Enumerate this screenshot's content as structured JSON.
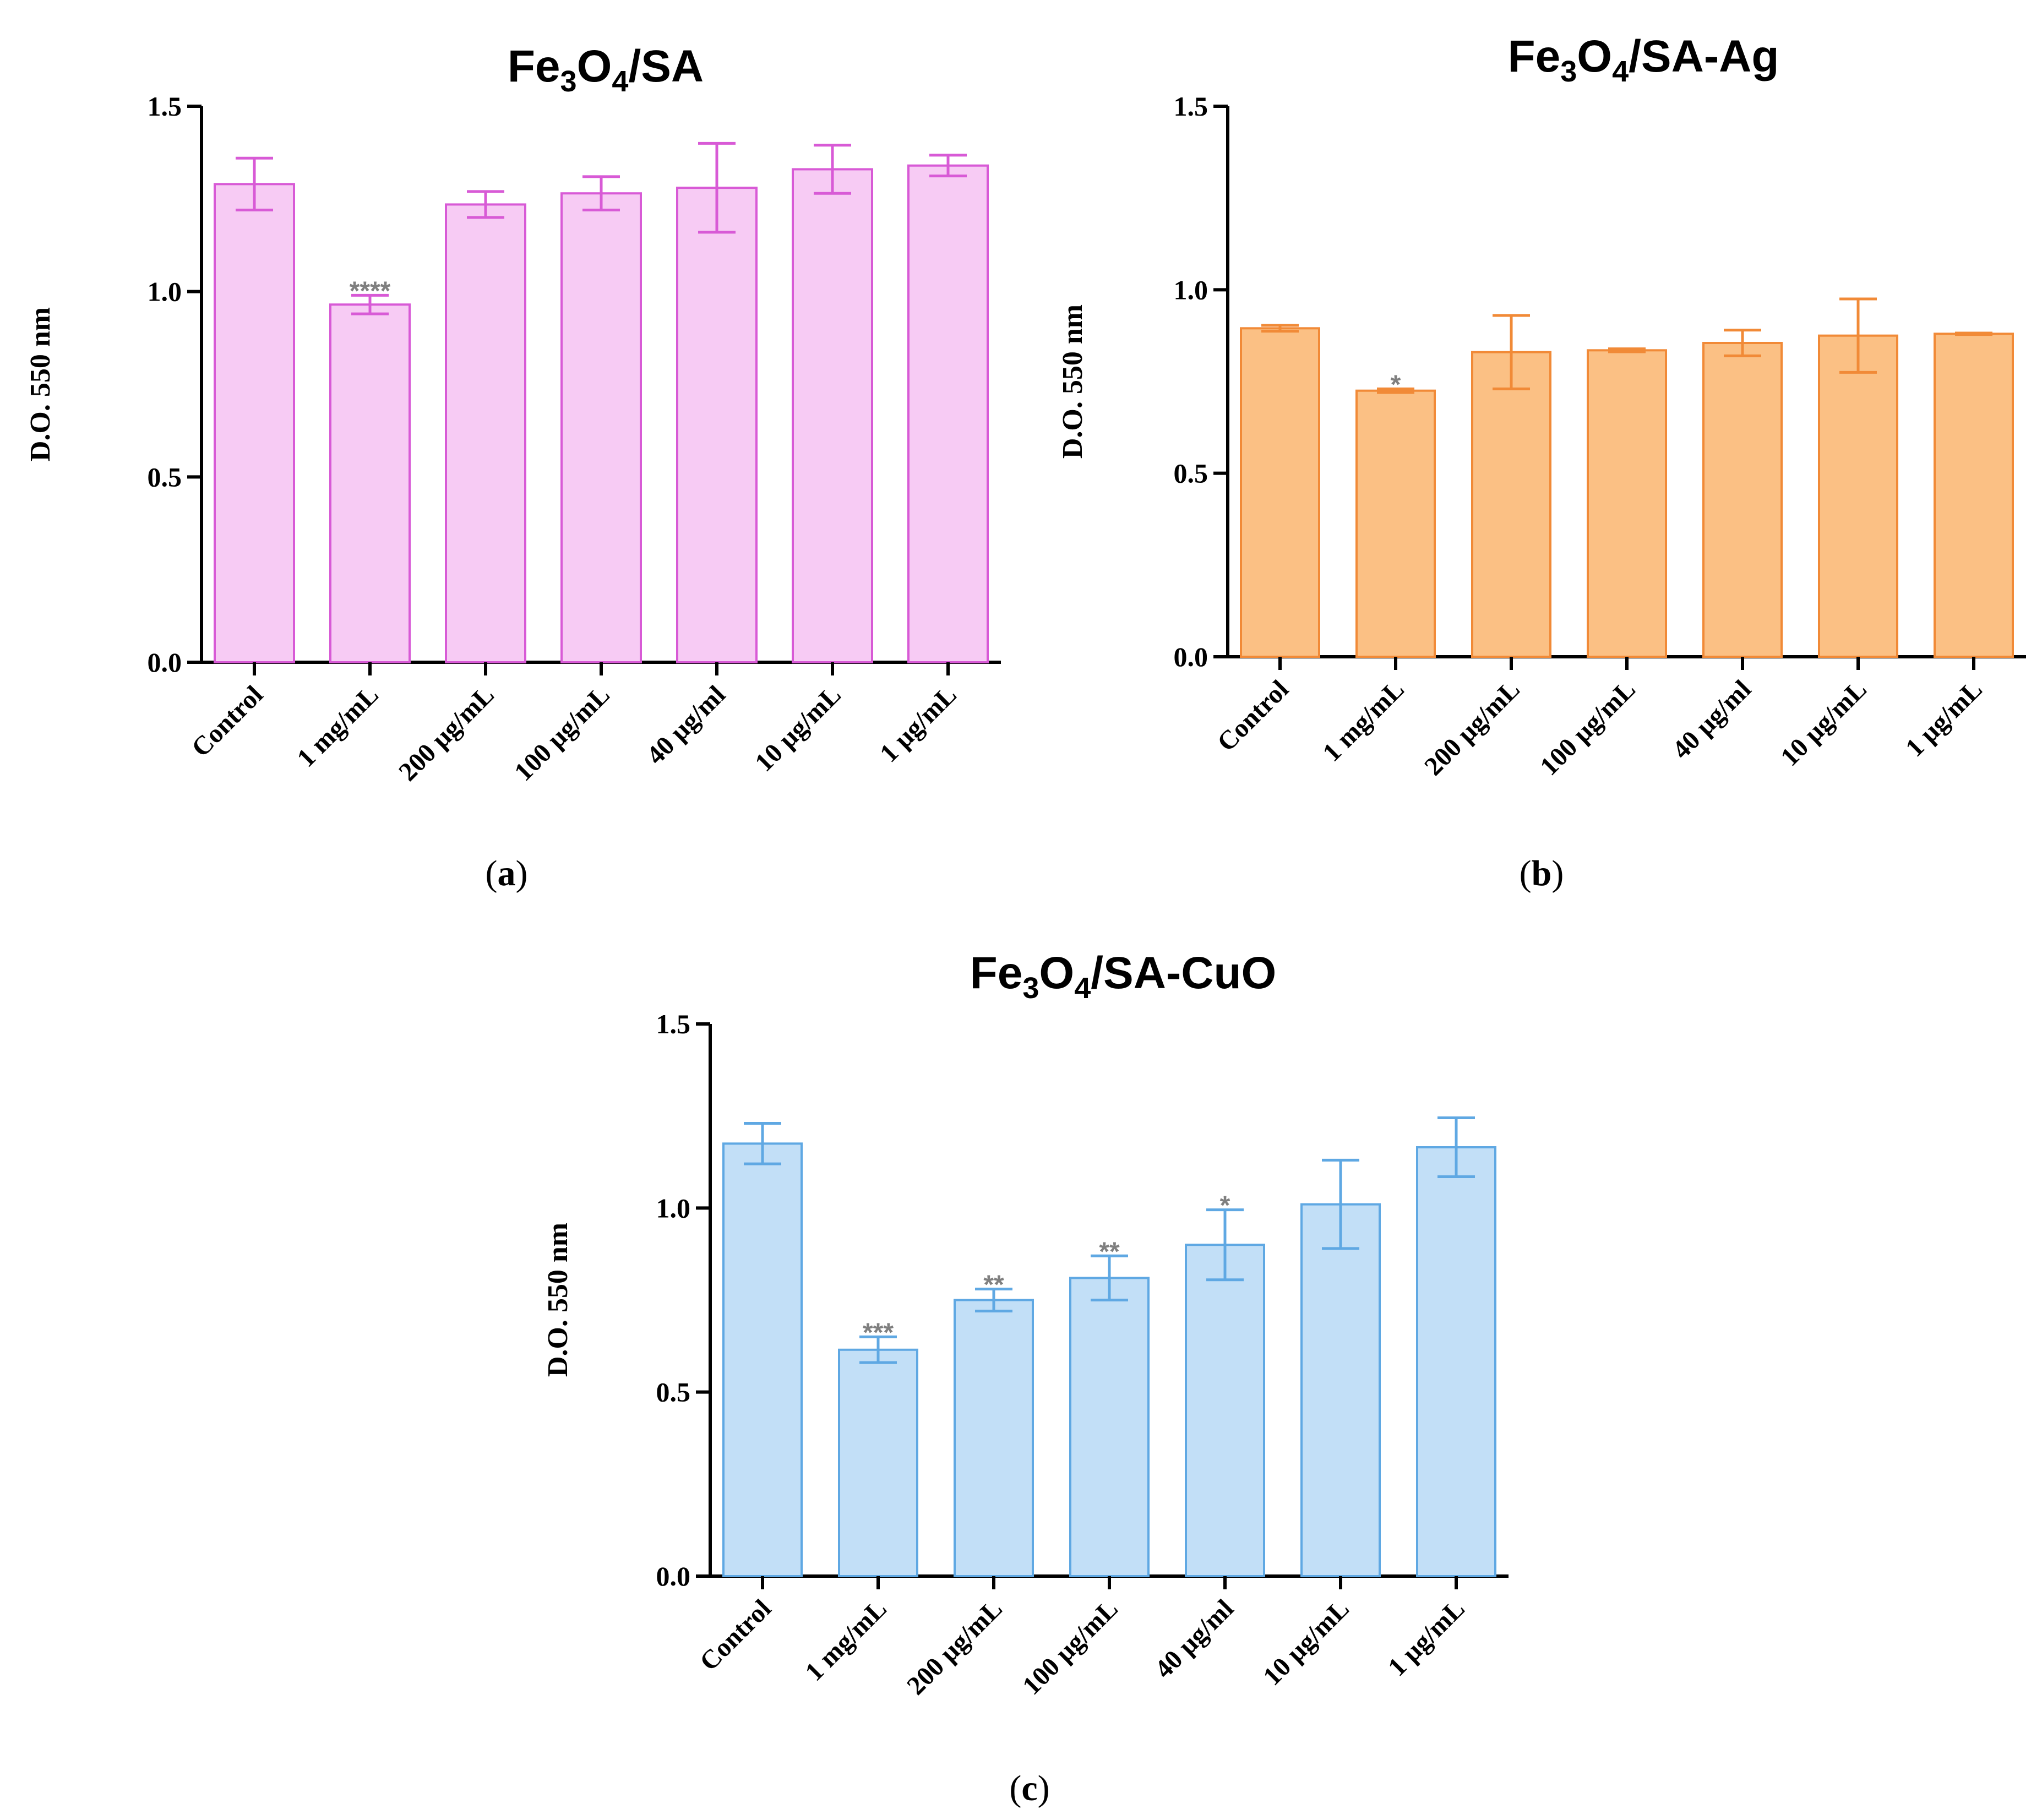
{
  "chart_data": [
    {
      "id": "a",
      "type": "bar",
      "title": {
        "main": "Fe",
        "sub1": "3",
        "mid": "O",
        "sub2": "4",
        "tail": "/SA"
      },
      "caption": {
        "open": "(",
        "letter": "a",
        "close": ")"
      },
      "xlabel": "",
      "ylabel": "D.O. 550 nm",
      "ylim": [
        0,
        1.5
      ],
      "yticks": [
        "0.0",
        "0.5",
        "1.0",
        "1.5"
      ],
      "categories": [
        "Control",
        "1 mg/mL",
        "200 µg/mL",
        "100 µg/mL",
        "40 µg/ml",
        "10 µg/mL",
        "1 µg/mL"
      ],
      "values": [
        1.29,
        0.965,
        1.235,
        1.265,
        1.28,
        1.33,
        1.34
      ],
      "errors": [
        0.07,
        0.025,
        0.035,
        0.045,
        0.12,
        0.065,
        0.028
      ],
      "significance": [
        "",
        "****",
        "",
        "",
        "",
        "",
        ""
      ],
      "colors": {
        "fill": "#f7cbf4",
        "stroke": "#d85ad6"
      }
    },
    {
      "id": "b",
      "type": "bar",
      "title": {
        "main": "Fe",
        "sub1": "3",
        "mid": "O",
        "sub2": "4",
        "tail": "/SA-Ag"
      },
      "caption": {
        "open": "(",
        "letter": "b",
        "close": ")"
      },
      "xlabel": "",
      "ylabel": "D.O. 550 nm",
      "ylim": [
        0,
        1.5
      ],
      "yticks": [
        "0.0",
        "0.5",
        "1.0",
        "1.5"
      ],
      "categories": [
        "Control",
        "1 mg/mL",
        "200 µg/mL",
        "100 µg/mL",
        "40 µg/ml",
        "10 µg/mL",
        "1 µg/mL"
      ],
      "values": [
        0.895,
        0.725,
        0.83,
        0.835,
        0.855,
        0.875,
        0.88
      ],
      "errors": [
        0.008,
        0.005,
        0.1,
        0.004,
        0.035,
        0.1,
        0.002
      ],
      "significance": [
        "",
        "*",
        "",
        "",
        "",
        "",
        ""
      ],
      "colors": {
        "fill": "#fbc084",
        "stroke": "#f18a37"
      }
    },
    {
      "id": "c",
      "type": "bar",
      "title": {
        "main": "Fe",
        "sub1": "3",
        "mid": "O",
        "sub2": "4",
        "tail": "/SA-CuO"
      },
      "caption": {
        "open": "(",
        "letter": "c",
        "close": ")"
      },
      "xlabel": "",
      "ylabel": "D.O. 550 nm",
      "ylim": [
        0,
        1.5
      ],
      "yticks": [
        "0.0",
        "0.5",
        "1.0",
        "1.5"
      ],
      "categories": [
        "Control",
        "1 mg/mL",
        "200 µg/mL",
        "100 µg/mL",
        "40 µg/ml",
        "10 µg/mL",
        "1 µg/mL"
      ],
      "values": [
        1.175,
        0.615,
        0.75,
        0.81,
        0.9,
        1.01,
        1.165
      ],
      "errors": [
        0.055,
        0.035,
        0.03,
        0.06,
        0.095,
        0.12,
        0.08
      ],
      "significance": [
        "",
        "***",
        "**",
        "**",
        "*",
        "",
        ""
      ],
      "colors": {
        "fill": "#c2dff7",
        "stroke": "#5fa8e3"
      }
    }
  ]
}
